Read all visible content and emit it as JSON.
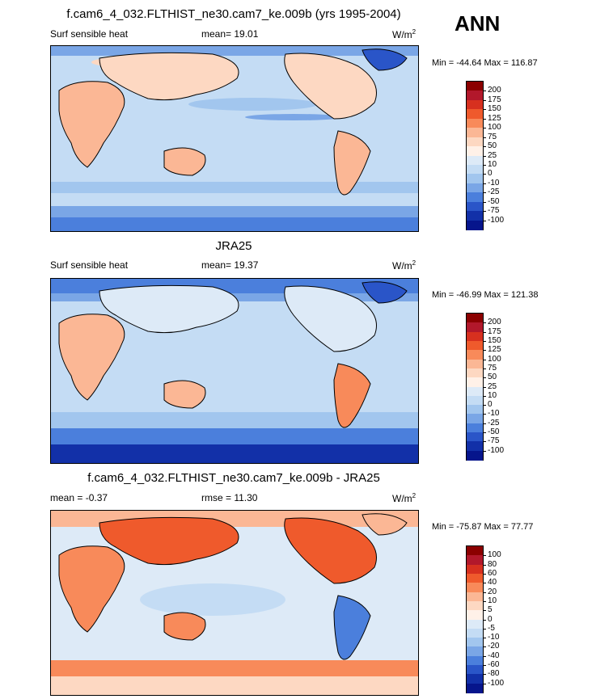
{
  "season": "ANN",
  "panels": [
    {
      "title": "f.cam6_4_032.FLTHIST_ne30.cam7_ke.009b (yrs 1995-2004)",
      "variable": "Surf sensible heat",
      "stat": "mean=  19.01",
      "units_base": "W/m",
      "units_exp": "2",
      "minmax": "Min = -44.64 Max = 116.87",
      "colorbar": {
        "labels": [
          "200",
          "175",
          "150",
          "125",
          "100",
          "75",
          "50",
          "25",
          "10",
          "0",
          "-10",
          "-25",
          "-50",
          "-75",
          "-100"
        ],
        "colors": [
          "#8b0000",
          "#b2182b",
          "#d7301f",
          "#ef5a2c",
          "#f88a5a",
          "#fbb795",
          "#fdd8c2",
          "#fff1e8",
          "#ddeaf7",
          "#c4dcf4",
          "#a2c6ee",
          "#7aa6e6",
          "#4b7fdc",
          "#2a55c8",
          "#1230a8",
          "#06158c"
        ]
      }
    },
    {
      "title": "JRA25",
      "variable": "Surf sensible heat",
      "stat": "mean=  19.37",
      "units_base": "W/m",
      "units_exp": "2",
      "minmax": "Min = -46.99 Max = 121.38",
      "colorbar": {
        "labels": [
          "200",
          "175",
          "150",
          "125",
          "100",
          "75",
          "50",
          "25",
          "10",
          "0",
          "-10",
          "-25",
          "-50",
          "-75",
          "-100"
        ],
        "colors": [
          "#8b0000",
          "#b2182b",
          "#d7301f",
          "#ef5a2c",
          "#f88a5a",
          "#fbb795",
          "#fdd8c2",
          "#fff1e8",
          "#ddeaf7",
          "#c4dcf4",
          "#a2c6ee",
          "#7aa6e6",
          "#4b7fdc",
          "#2a55c8",
          "#1230a8",
          "#06158c"
        ]
      }
    },
    {
      "title": "f.cam6_4_032.FLTHIST_ne30.cam7_ke.009b - JRA25",
      "stat_left": "mean =  -0.37",
      "stat": "rmse =  11.30",
      "units_base": "W/m",
      "units_exp": "2",
      "minmax": "Min = -75.87 Max =  77.77",
      "colorbar": {
        "labels": [
          "100",
          "80",
          "60",
          "40",
          "20",
          "10",
          "5",
          "0",
          "-5",
          "-10",
          "-20",
          "-40",
          "-60",
          "-80",
          "-100"
        ],
        "colors": [
          "#8b0000",
          "#b2182b",
          "#d7301f",
          "#ef5a2c",
          "#f88a5a",
          "#fbb795",
          "#fdd8c2",
          "#fff1e8",
          "#ddeaf7",
          "#c4dcf4",
          "#a2c6ee",
          "#7aa6e6",
          "#4b7fdc",
          "#2a55c8",
          "#1230a8",
          "#06158c"
        ]
      }
    }
  ]
}
